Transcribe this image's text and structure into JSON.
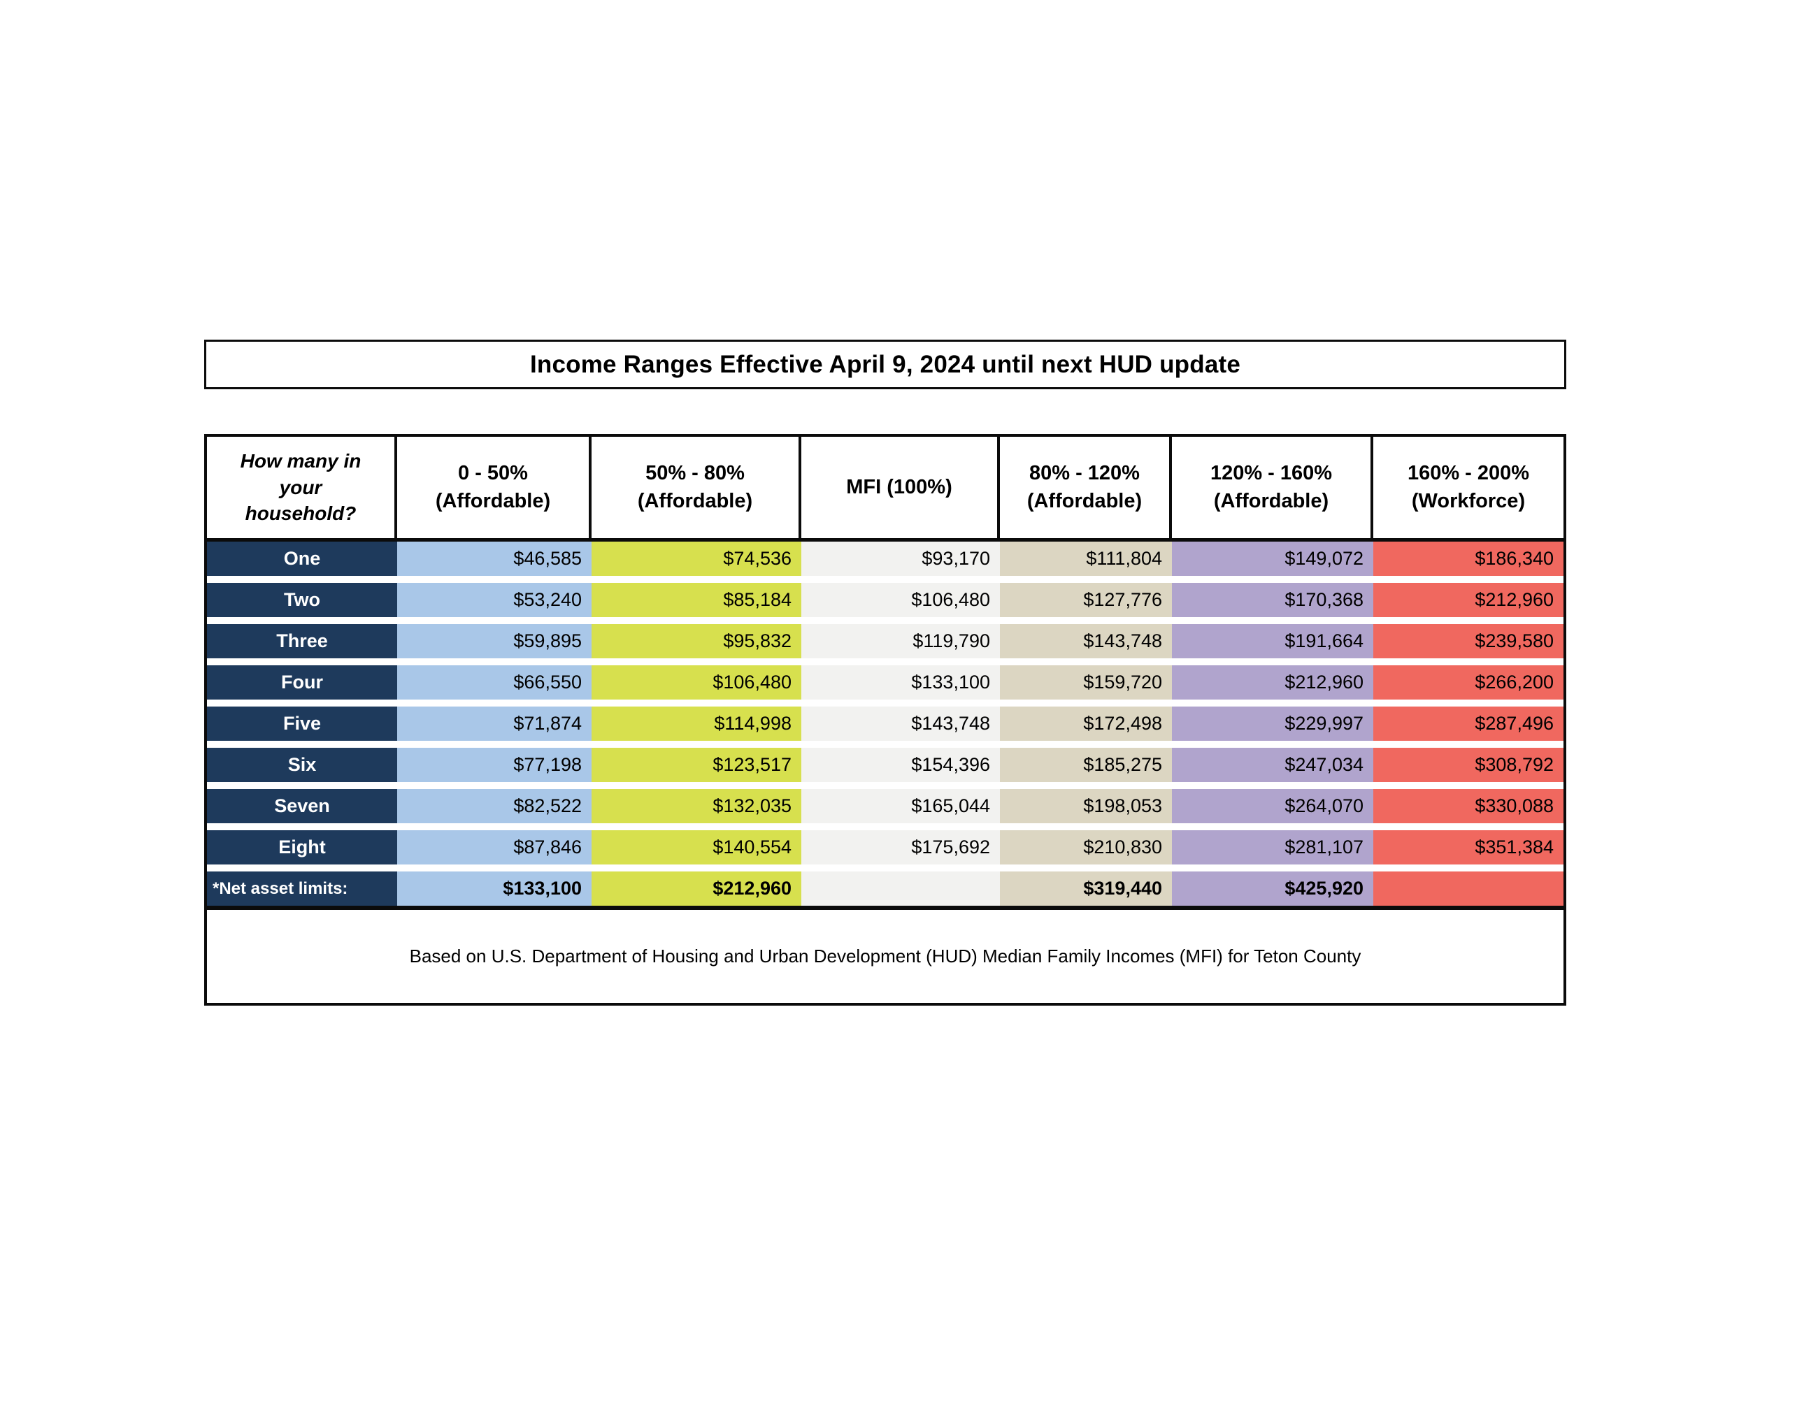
{
  "title": "Income Ranges Effective April 9, 2024 until next HUD update",
  "table": {
    "header": {
      "household_label": "How many in\nyour\nhousehold?",
      "columns": [
        "0 - 50%\n(Affordable)",
        "50% - 80%\n(Affordable)",
        "MFI (100%)",
        "80% - 120%\n(Affordable)",
        "120% - 160%\n(Affordable)",
        "160% - 200%\n(Workforce)"
      ]
    },
    "rows": [
      {
        "label": "One",
        "values": [
          "$46,585",
          "$74,536",
          "$93,170",
          "$111,804",
          "$149,072",
          "$186,340"
        ]
      },
      {
        "label": "Two",
        "values": [
          "$53,240",
          "$85,184",
          "$106,480",
          "$127,776",
          "$170,368",
          "$212,960"
        ]
      },
      {
        "label": "Three",
        "values": [
          "$59,895",
          "$95,832",
          "$119,790",
          "$143,748",
          "$191,664",
          "$239,580"
        ]
      },
      {
        "label": "Four",
        "values": [
          "$66,550",
          "$106,480",
          "$133,100",
          "$159,720",
          "$212,960",
          "$266,200"
        ]
      },
      {
        "label": "Five",
        "values": [
          "$71,874",
          "$114,998",
          "$143,748",
          "$172,498",
          "$229,997",
          "$287,496"
        ]
      },
      {
        "label": "Six",
        "values": [
          "$77,198",
          "$123,517",
          "$154,396",
          "$185,275",
          "$247,034",
          "$308,792"
        ]
      },
      {
        "label": "Seven",
        "values": [
          "$82,522",
          "$132,035",
          "$165,044",
          "$198,053",
          "$264,070",
          "$330,088"
        ]
      },
      {
        "label": "Eight",
        "values": [
          "$87,846",
          "$140,554",
          "$175,692",
          "$210,830",
          "$281,107",
          "$351,384"
        ]
      }
    ],
    "net_asset_row": {
      "label": "*Net asset limits:",
      "values": [
        "$133,100",
        "$212,960",
        "",
        "$319,440",
        "$425,920",
        ""
      ]
    },
    "note": "Based on U.S. Department of Housing and Urban Development (HUD) Median Family Incomes (MFI) for Teton County"
  },
  "colors": {
    "row_label_bg": "#1e3a5c",
    "col_0_50": "#a9c7e8",
    "col_50_80": "#d7e04e",
    "col_mfi": "#f2f2f0",
    "col_80_120": "#dcd6c2",
    "col_120_160": "#b0a4cd",
    "col_160_200": "#f0685f",
    "border": "#0b0b0b"
  }
}
